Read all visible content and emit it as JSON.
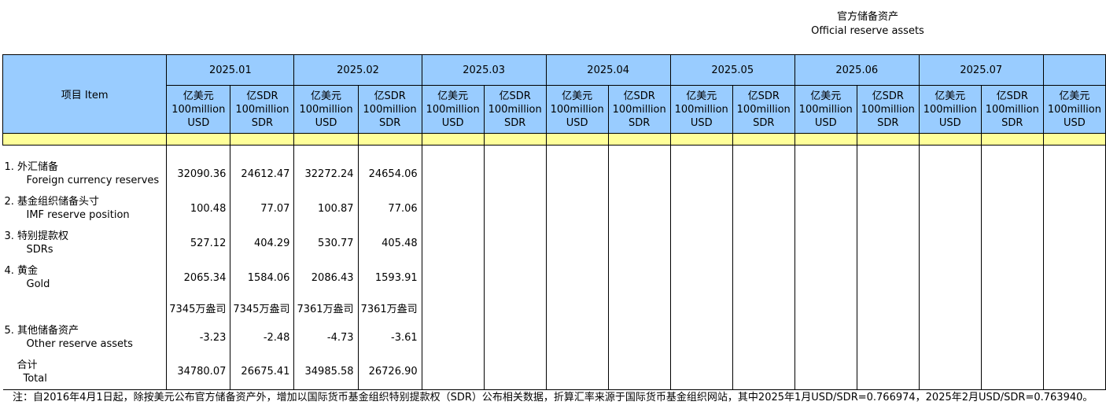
{
  "title": {
    "cn": "官方储备资产",
    "en": "Official reserve assets"
  },
  "table": {
    "item_header": "项目  Item",
    "months": [
      "2025.01",
      "2025.02",
      "2025.03",
      "2025.04",
      "2025.05",
      "2025.06",
      "2025.07",
      ""
    ],
    "unit_usd": [
      "亿美元",
      "100million",
      "USD"
    ],
    "unit_sdr": [
      "亿SDR",
      "100million",
      "SDR"
    ],
    "rows": [
      {
        "cn": "1.  外汇储备",
        "en": "Foreign currency reserves",
        "values": [
          "32090.36",
          "24612.47",
          "32272.24",
          "24654.06"
        ]
      },
      {
        "cn": "2.  基金组织储备头寸",
        "en": "IMF reserve position",
        "values": [
          "100.48",
          "77.07",
          "100.87",
          "77.06"
        ]
      },
      {
        "cn": "3.  特别提款权",
        "en": "SDRs",
        "values": [
          "527.12",
          "404.29",
          "530.77",
          "405.48"
        ]
      },
      {
        "cn": "4.  黄金",
        "en": "Gold",
        "values": [
          "2065.34",
          "1584.06",
          "2086.43",
          "1593.91"
        ]
      },
      {
        "cn": "",
        "en": "",
        "values": [
          "7345万盎司",
          "7345万盎司",
          "7361万盎司",
          "7361万盎司"
        ]
      },
      {
        "cn": "5.  其他储备资产",
        "en": "Other reserve assets",
        "values": [
          "-3.23",
          "-2.48",
          "-4.73",
          "-3.61"
        ]
      },
      {
        "cn": "合计",
        "en": "Total",
        "values": [
          "34780.07",
          "26675.41",
          "34985.58",
          "26726.90"
        ]
      }
    ]
  },
  "note": "注：自2016年4月1日起，除按美元公布官方储备资产外，增加以国际货币基金组织特别提款权（SDR）公布相关数据，折算汇率来源于国际货币基金组织网站，其中2025年1月USD/SDR=0.766974，2025年2月USD/SDR=0.763940。",
  "colors": {
    "header_bg": "#99ccff",
    "highlight_row": "#ffff99"
  }
}
